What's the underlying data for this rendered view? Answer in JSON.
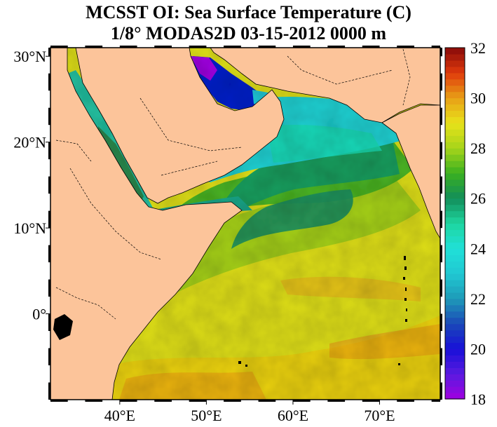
{
  "title": {
    "line1": "MCSST OI:  Sea Surface Temperature (C)",
    "line2": "1/8° MODAS2D 03-15-2012 0000 m"
  },
  "map": {
    "region": "Arabian Sea / Red Sea / Persian Gulf",
    "lon_range": [
      32,
      77
    ],
    "lat_range": [
      -10,
      31
    ],
    "lon_ticks": [
      {
        "value": 40,
        "label": "40°E"
      },
      {
        "value": 50,
        "label": "50°E"
      },
      {
        "value": 60,
        "label": "60°E"
      },
      {
        "value": 70,
        "label": "70°E"
      }
    ],
    "lat_ticks": [
      {
        "value": 30,
        "label": "30°N"
      },
      {
        "value": 20,
        "label": "20°N"
      },
      {
        "value": 10,
        "label": "10°N"
      },
      {
        "value": 0,
        "label": "0°"
      }
    ],
    "land_color": "#fcc49a"
  },
  "colorbar": {
    "min": 18,
    "max": 32,
    "tick_labels": [
      "32",
      "30",
      "28",
      "26",
      "24",
      "22",
      "20",
      "18"
    ],
    "stops": [
      {
        "value": 18,
        "color": "#a000e0"
      },
      {
        "value": 19,
        "color": "#5a1ae0"
      },
      {
        "value": 20,
        "color": "#1810d8"
      },
      {
        "value": 21,
        "color": "#1a48b8"
      },
      {
        "value": 22,
        "color": "#1e9ab8"
      },
      {
        "value": 23,
        "color": "#20c8d2"
      },
      {
        "value": 24,
        "color": "#20e0d8"
      },
      {
        "value": 25,
        "color": "#1ed6a0"
      },
      {
        "value": 26,
        "color": "#128e5a"
      },
      {
        "value": 27,
        "color": "#3ab020"
      },
      {
        "value": 28,
        "color": "#a6d41a"
      },
      {
        "value": 29,
        "color": "#e8e21a"
      },
      {
        "value": 30,
        "color": "#e8a016"
      },
      {
        "value": 31,
        "color": "#e03a0c"
      },
      {
        "value": 32,
        "color": "#880a0a"
      }
    ]
  }
}
